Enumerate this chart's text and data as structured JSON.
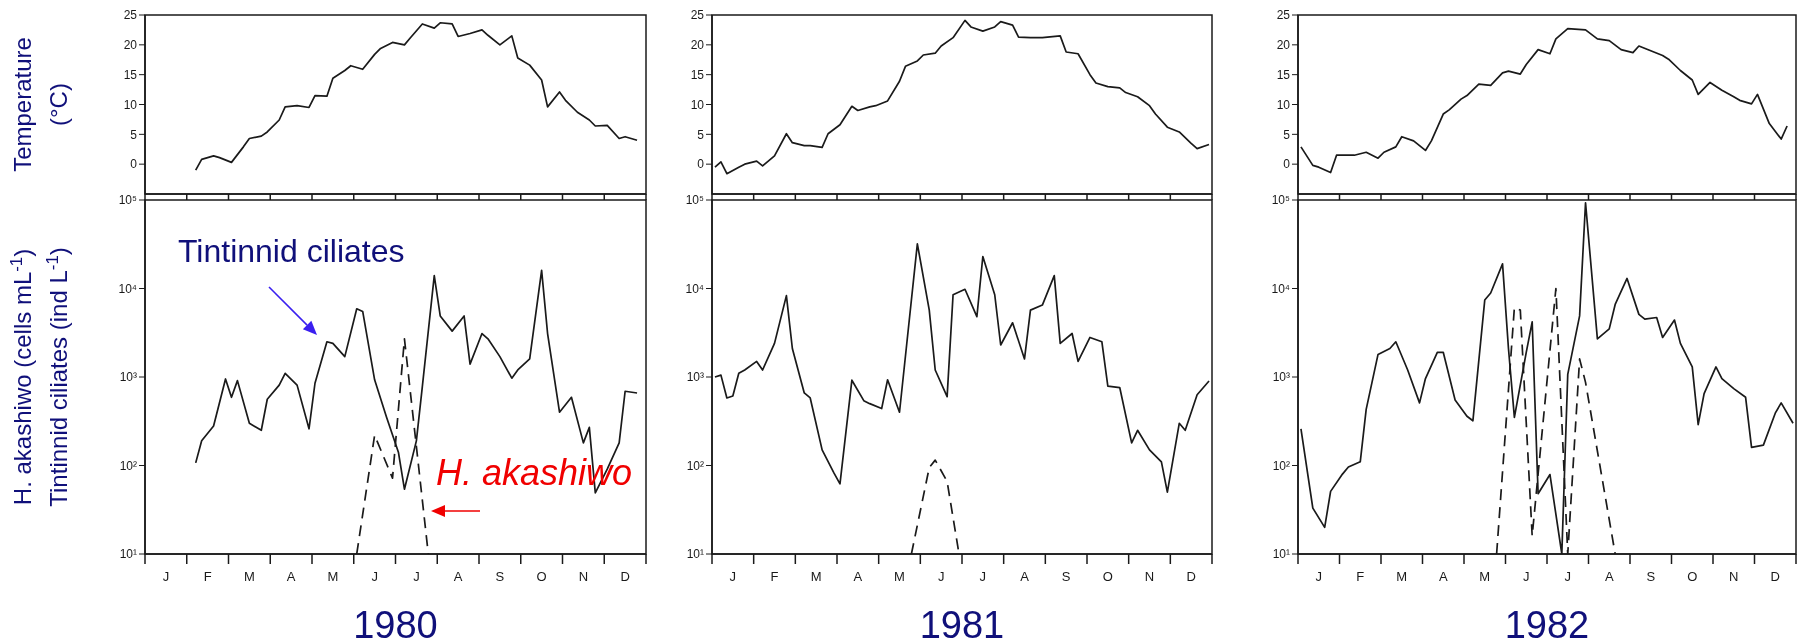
{
  "chart_data": [
    {
      "type": "line",
      "ylabel": "Temperature\n(°C)",
      "ylim": [
        -5,
        25
      ],
      "yticks": [
        0,
        5,
        10,
        15,
        20,
        25
      ],
      "tick_labels": "y",
      "categories": [
        null,
        null,
        null,
        null,
        null,
        null,
        null,
        null,
        null,
        null,
        null,
        null,
        null,
        null,
        null,
        null,
        null,
        null,
        null,
        null,
        null,
        null,
        null,
        null,
        null,
        null,
        null,
        null,
        null,
        null,
        null,
        null,
        null,
        null,
        null,
        null,
        null,
        null,
        null,
        null,
        null,
        null,
        null,
        null,
        null,
        null,
        null,
        null,
        null,
        null,
        null,
        null,
        null,
        null,
        null,
        null,
        null,
        null,
        null,
        null,
        null,
        null,
        null,
        null,
        null,
        null,
        null,
        null,
        null,
        null,
        null,
        null,
        null,
        null,
        null,
        null,
        null,
        null,
        null,
        null,
        null,
        null,
        null,
        null
      ],
      "series": [
        {
          "color": "#1a1a1a",
          "values": [
            null,
            null,
            null,
            null,
            null,
            null,
            null,
            null,
            -1,
            0.8,
            null,
            1.4,
            1.1,
            null,
            0.3,
            null,
            2.9,
            4.3,
            null,
            4.7,
            5.4,
            null,
            7.4,
            9.6,
            null,
            9.8,
            null,
            9.5,
            11.5,
            null,
            11.4,
            14.4,
            null,
            15.7,
            16.5,
            null,
            15.9,
            null,
            18.4,
            19.4,
            null,
            20.4,
            null,
            20,
            21.2,
            null,
            23.5,
            null,
            22.8,
            23.7,
            null,
            23.5,
            21.4,
            null,
            21.9,
            null,
            22.5,
            21.6,
            null,
            20,
            null,
            21.5,
            17.8,
            null,
            16.6,
            null,
            14.1,
            9.6,
            null,
            12.1,
            10.7,
            null,
            8.7,
            null,
            7.4,
            6.4,
            null,
            6.5,
            null,
            4.3,
            4.6,
            null,
            4,
            null
          ]
        }
      ]
    },
    {
      "type": "line",
      "ylim": [
        -5,
        25
      ],
      "yticks": [
        0,
        5,
        10,
        15,
        20,
        25
      ],
      "tick_labels": "y",
      "categories": [
        null,
        null,
        null,
        null,
        null,
        null,
        null,
        null,
        null,
        null,
        null,
        null,
        null,
        null,
        null,
        null,
        null,
        null,
        null,
        null,
        null,
        null,
        null,
        null,
        null,
        null,
        null,
        null,
        null,
        null,
        null,
        null,
        null,
        null,
        null,
        null,
        null,
        null,
        null,
        null,
        null,
        null,
        null,
        null,
        null,
        null,
        null,
        null,
        null,
        null,
        null,
        null,
        null,
        null,
        null,
        null,
        null,
        null,
        null,
        null,
        null,
        null,
        null,
        null,
        null,
        null,
        null,
        null,
        null,
        null,
        null,
        null,
        null,
        null,
        null,
        null,
        null,
        null,
        null,
        null,
        null,
        null,
        null,
        null
      ],
      "series": [
        {
          "color": "#1a1a1a",
          "values": [
            -0.5,
            0.4,
            -1.6,
            null,
            -0.5,
            0,
            null,
            0.5,
            -0.3,
            null,
            1.4,
            null,
            5.1,
            3.6,
            null,
            3.1,
            3.1,
            null,
            2.8,
            5.1,
            null,
            6.6,
            null,
            9.7,
            9,
            null,
            9.6,
            9.8,
            null,
            10.6,
            null,
            13.9,
            16.4,
            null,
            17.3,
            18.3,
            null,
            18.6,
            19.8,
            null,
            21.2,
            null,
            24.1,
            23,
            null,
            22.3,
            null,
            23,
            23.9,
            null,
            23.3,
            21.3,
            null,
            21.2,
            null,
            21.2,
            null,
            null,
            21.5,
            18.8,
            null,
            18.5,
            null,
            15,
            13.6,
            null,
            13,
            null,
            12.8,
            12,
            null,
            11.3,
            null,
            9.8,
            8.4,
            null,
            6.2,
            null,
            5.4,
            null,
            3.5,
            2.6,
            null,
            3.3
          ]
        }
      ]
    },
    {
      "type": "line",
      "ylim": [
        -5,
        25
      ],
      "yticks": [
        0,
        5,
        10,
        15,
        20,
        25
      ],
      "tick_labels": "y",
      "categories": [
        null,
        null,
        null,
        null,
        null,
        null,
        null,
        null,
        null,
        null,
        null,
        null,
        null,
        null,
        null,
        null,
        null,
        null,
        null,
        null,
        null,
        null,
        null,
        null,
        null,
        null,
        null,
        null,
        null,
        null,
        null,
        null,
        null,
        null,
        null,
        null,
        null,
        null,
        null,
        null,
        null,
        null,
        null,
        null,
        null,
        null,
        null,
        null,
        null,
        null,
        null,
        null,
        null,
        null,
        null,
        null,
        null,
        null,
        null,
        null,
        null,
        null,
        null,
        null,
        null,
        null,
        null,
        null,
        null,
        null,
        null,
        null,
        null,
        null,
        null,
        null,
        null,
        null,
        null,
        null,
        null,
        null,
        null,
        null
      ],
      "series": [
        {
          "color": "#1a1a1a",
          "values": [
            2.9,
            null,
            -0.2,
            -0.5,
            null,
            -1.4,
            1.5,
            null,
            1.5,
            1.5,
            null,
            2,
            null,
            1,
            2,
            null,
            2.9,
            4.6,
            null,
            3.9,
            null,
            2.3,
            3.9,
            null,
            8.4,
            9.1,
            null,
            10.9,
            11.5,
            null,
            13.4,
            null,
            13.2,
            null,
            15.3,
            15.6,
            null,
            15.1,
            16.7,
            null,
            19.2,
            null,
            18.5,
            21,
            null,
            22.7,
            null,
            null,
            22.5,
            null,
            21,
            null,
            20.7,
            null,
            19.2,
            null,
            18.7,
            19.8,
            null,
            19,
            null,
            18.2,
            17.6,
            null,
            15.7,
            null,
            14.1,
            11.7,
            null,
            13.7,
            null,
            12.4,
            null,
            11.3,
            10.7,
            null,
            10.1,
            11.7,
            null,
            6.8,
            null,
            4.2,
            6.4,
            null
          ]
        }
      ]
    },
    {
      "type": "line",
      "log": true,
      "xlabel": "1980",
      "ylabel": "H. akashiwo  (cells mL$^{-1}$)\nTintinnid ciliates (ind L$^{-1}$)",
      "ylim": [
        10,
        100000
      ],
      "yticks": [
        {
          "value": 10,
          "label": "10¹"
        },
        {
          "value": 100,
          "label": "10²"
        },
        {
          "value": 1000,
          "label": "10³"
        },
        {
          "value": 10000,
          "label": "10⁴"
        },
        {
          "value": 100000,
          "label": "10⁵"
        }
      ],
      "categories": [
        null,
        null,
        null,
        "J",
        null,
        null,
        null,
        null,
        null,
        null,
        "F",
        null,
        null,
        null,
        null,
        null,
        null,
        "M",
        null,
        null,
        null,
        null,
        null,
        null,
        "A",
        null,
        null,
        null,
        null,
        null,
        null,
        "M",
        null,
        null,
        null,
        null,
        null,
        null,
        "J",
        null,
        null,
        null,
        null,
        null,
        null,
        "J",
        null,
        null,
        null,
        null,
        null,
        null,
        "A",
        null,
        null,
        null,
        null,
        null,
        null,
        "S",
        null,
        null,
        null,
        null,
        null,
        null,
        "O",
        null,
        null,
        null,
        null,
        null,
        null,
        "N",
        null,
        null,
        null,
        null,
        null,
        null,
        "D",
        null,
        null,
        null
      ],
      "annotations": [
        "Tintinnid ciliates",
        "H. akashiwo"
      ],
      "series": [
        {
          "color": "#1a1a1a",
          "line_style": "solid",
          "values": [
            null,
            null,
            null,
            null,
            null,
            null,
            null,
            null,
            107,
            190,
            null,
            280,
            null,
            950,
            590,
            910,
            null,
            300,
            null,
            250,
            560,
            null,
            810,
            1100,
            null,
            810,
            null,
            260,
            850,
            null,
            2500,
            2400,
            null,
            1700,
            null,
            5900,
            5500,
            null,
            930,
            null,
            350,
            null,
            140,
            54,
            null,
            190,
            780,
            null,
            14000,
            4900,
            null,
            3300,
            null,
            4900,
            1400,
            null,
            3100,
            2700,
            null,
            1700,
            null,
            970,
            1200,
            null,
            1600,
            null,
            16000,
            3100,
            null,
            400,
            null,
            590,
            null,
            180,
            270,
            49,
            null,
            91,
            null,
            180,
            690,
            null,
            660,
            null
          ]
        },
        {
          "color": "#1a1a1a",
          "line_style": "dashed",
          "values": [
            null,
            null,
            null,
            null,
            null,
            null,
            null,
            null,
            null,
            null,
            null,
            null,
            null,
            null,
            null,
            null,
            null,
            null,
            null,
            null,
            null,
            null,
            null,
            null,
            null,
            null,
            null,
            null,
            null,
            null,
            null,
            null,
            null,
            null,
            null,
            10,
            null,
            null,
            220,
            null,
            null,
            72,
            null,
            2700,
            null,
            null,
            null,
            10,
            null,
            null,
            null,
            null,
            null,
            null,
            null,
            null,
            null,
            null,
            null,
            null,
            null,
            null,
            null,
            null,
            null,
            null,
            null,
            null,
            null,
            null,
            null,
            null,
            null,
            null,
            null,
            null,
            null,
            null,
            null,
            null,
            null,
            null,
            null,
            null
          ]
        }
      ]
    },
    {
      "type": "line",
      "log": true,
      "xlabel": "1981",
      "ylim": [
        10,
        100000
      ],
      "yticks": [
        {
          "value": 10,
          "label": "10¹"
        },
        {
          "value": 100,
          "label": "10²"
        },
        {
          "value": 1000,
          "label": "10³"
        },
        {
          "value": 10000,
          "label": "10⁴"
        },
        {
          "value": 100000,
          "label": "10⁵"
        }
      ],
      "categories": [
        null,
        null,
        null,
        "J",
        null,
        null,
        null,
        null,
        null,
        null,
        "F",
        null,
        null,
        null,
        null,
        null,
        null,
        "M",
        null,
        null,
        null,
        null,
        null,
        null,
        "A",
        null,
        null,
        null,
        null,
        null,
        null,
        "M",
        null,
        null,
        null,
        null,
        null,
        null,
        "J",
        null,
        null,
        null,
        null,
        null,
        null,
        "J",
        null,
        null,
        null,
        null,
        null,
        null,
        "A",
        null,
        null,
        null,
        null,
        null,
        null,
        "S",
        null,
        null,
        null,
        null,
        null,
        null,
        "O",
        null,
        null,
        null,
        null,
        null,
        null,
        "N",
        null,
        null,
        null,
        null,
        null,
        null,
        "D",
        null,
        null,
        null
      ],
      "series": [
        {
          "color": "#1a1a1a",
          "line_style": "solid",
          "values": [
            1000,
            1050,
            580,
            610,
            1100,
            1200,
            null,
            1500,
            1200,
            null,
            2400,
            null,
            8300,
            2100,
            null,
            660,
            580,
            null,
            150,
            null,
            82,
            62,
            null,
            920,
            null,
            540,
            500,
            null,
            440,
            930,
            null,
            400,
            null,
            null,
            32000,
            null,
            5700,
            1200,
            null,
            600,
            8500,
            null,
            9800,
            null,
            4800,
            23000,
            null,
            8500,
            2300,
            null,
            4100,
            null,
            1600,
            5700,
            null,
            6500,
            null,
            14000,
            2400,
            null,
            3100,
            1500,
            null,
            2800,
            null,
            2500,
            790,
            null,
            760,
            null,
            180,
            250,
            null,
            150,
            null,
            110,
            50,
            null,
            300,
            250,
            null,
            630,
            null,
            900
          ]
        },
        {
          "color": "#1a1a1a",
          "line_style": "dashed",
          "values": [
            null,
            null,
            null,
            null,
            null,
            null,
            null,
            null,
            null,
            null,
            null,
            null,
            null,
            null,
            null,
            null,
            null,
            null,
            null,
            null,
            null,
            null,
            null,
            null,
            null,
            null,
            null,
            null,
            null,
            null,
            null,
            null,
            null,
            10,
            null,
            null,
            95,
            115,
            null,
            66,
            null,
            10,
            null,
            null,
            null,
            null,
            null,
            null,
            null,
            null,
            null,
            null,
            null,
            null,
            null,
            null,
            null,
            null,
            null,
            null,
            null,
            null,
            null,
            null,
            null,
            null,
            null,
            null,
            null,
            null,
            null,
            null,
            null,
            null,
            null,
            null,
            null,
            null,
            null,
            null,
            null,
            null,
            null,
            null
          ]
        }
      ]
    },
    {
      "type": "line",
      "log": true,
      "xlabel": "1982",
      "ylim": [
        10,
        100000
      ],
      "yticks": [
        {
          "value": 10,
          "label": "10¹"
        },
        {
          "value": 100,
          "label": "10²"
        },
        {
          "value": 1000,
          "label": "10³"
        },
        {
          "value": 10000,
          "label": "10⁴"
        },
        {
          "value": 100000,
          "label": "10⁵"
        }
      ],
      "categories": [
        null,
        null,
        null,
        "J",
        null,
        null,
        null,
        null,
        null,
        null,
        "F",
        null,
        null,
        null,
        null,
        null,
        null,
        "M",
        null,
        null,
        null,
        null,
        null,
        null,
        "A",
        null,
        null,
        null,
        null,
        null,
        null,
        "M",
        null,
        null,
        null,
        null,
        null,
        null,
        "J",
        null,
        null,
        null,
        null,
        null,
        null,
        "J",
        null,
        null,
        null,
        null,
        null,
        null,
        "A",
        null,
        null,
        null,
        null,
        null,
        null,
        "S",
        null,
        null,
        null,
        null,
        null,
        null,
        "O",
        null,
        null,
        null,
        null,
        null,
        null,
        "N",
        null,
        null,
        null,
        null,
        null,
        null,
        "D",
        null,
        null,
        null
      ],
      "series": [
        {
          "color": "#1a1a1a",
          "line_style": "solid",
          "values": [
            260,
            null,
            33,
            null,
            20,
            51,
            null,
            80,
            96,
            null,
            110,
            430,
            null,
            1800,
            null,
            2100,
            2500,
            null,
            1200,
            null,
            510,
            960,
            null,
            1900,
            1900,
            null,
            550,
            null,
            360,
            320,
            null,
            7400,
            8900,
            null,
            19000,
            2100,
            350,
            null,
            1900,
            4200,
            48,
            null,
            79,
            null,
            10,
            1070,
            null,
            4900,
            93000,
            null,
            2700,
            null,
            3500,
            6600,
            null,
            13000,
            null,
            5100,
            4500,
            null,
            4700,
            2800,
            null,
            4400,
            2400,
            null,
            1300,
            290,
            650,
            null,
            1300,
            960,
            null,
            740,
            null,
            590,
            160,
            null,
            170,
            null,
            390,
            510,
            null,
            300
          ]
        },
        {
          "color": "#1a1a1a",
          "line_style": "dashed",
          "values": [
            null,
            null,
            null,
            null,
            null,
            null,
            null,
            null,
            null,
            null,
            null,
            null,
            null,
            null,
            null,
            null,
            null,
            null,
            null,
            null,
            null,
            null,
            null,
            null,
            null,
            null,
            null,
            null,
            null,
            null,
            null,
            null,
            null,
            10,
            null,
            null,
            6100,
            5700,
            null,
            16,
            null,
            null,
            null,
            10000,
            null,
            10,
            null,
            1600,
            870,
            null,
            null,
            null,
            null,
            10,
            null,
            null,
            null,
            null,
            null,
            null,
            null,
            null,
            null,
            null,
            null,
            null,
            null,
            null,
            null,
            null,
            null,
            null,
            null,
            null,
            null,
            null,
            null,
            null,
            null,
            null,
            null,
            null,
            null,
            null
          ]
        }
      ]
    }
  ]
}
